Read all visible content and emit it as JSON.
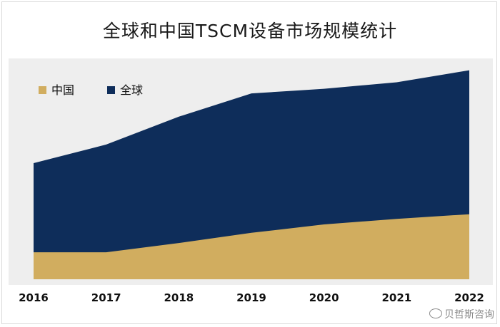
{
  "title": "全球和中国TSCM设备市场规模统计",
  "watermark": "贝哲斯咨询",
  "colors": {
    "china": "#D1AD5F",
    "global": "#0E2D5A",
    "plot_bg": "#EEEEEE"
  },
  "chart_data": {
    "type": "area",
    "stacked": false,
    "title": "全球和中国TSCM设备市场规模统计",
    "categories": [
      "2016",
      "2017",
      "2018",
      "2019",
      "2020",
      "2021",
      "2022"
    ],
    "series": [
      {
        "name": "中国",
        "color": "#D1AD5F",
        "values": [
          29,
          29,
          39,
          50,
          59,
          65,
          70
        ]
      },
      {
        "name": "全球",
        "color": "#0E2D5A",
        "values": [
          125,
          145,
          175,
          200,
          205,
          212,
          225
        ]
      }
    ],
    "ylim": [
      0,
      240
    ],
    "grid": false,
    "legend": "top-left",
    "xlabel": "",
    "ylabel": ""
  }
}
